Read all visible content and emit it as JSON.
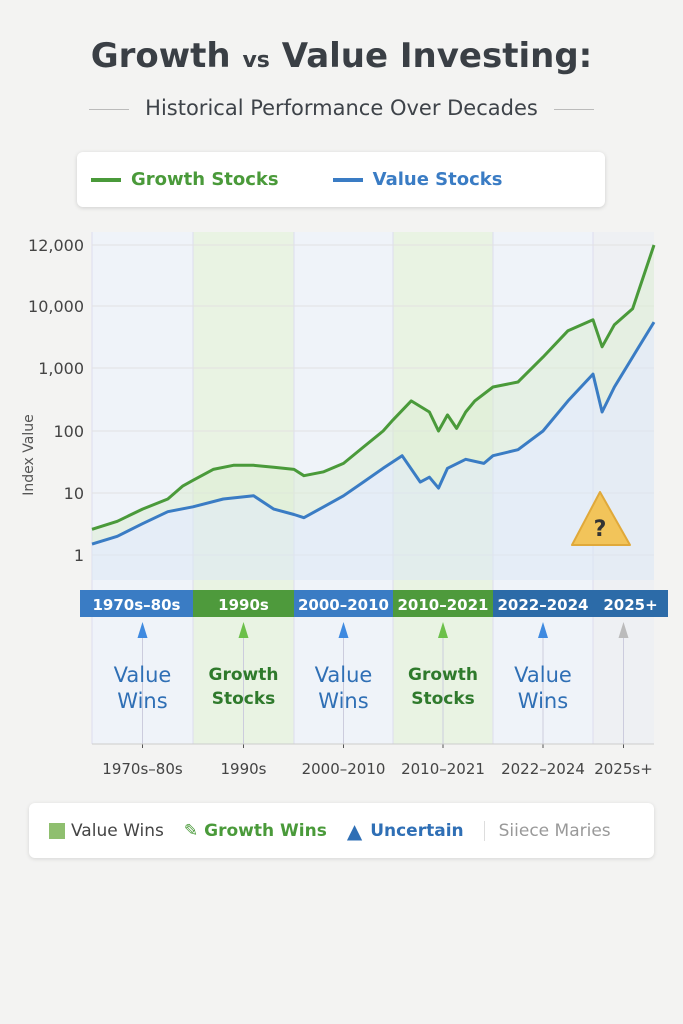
{
  "title": {
    "part1": "Growth",
    "vs": "vs",
    "part2": "Value Investing:"
  },
  "subtitle": "Historical Performance Over Decades",
  "colors": {
    "growth": "#4a9a3a",
    "value": "#3a7cc4",
    "uncertain": "#f2c45a"
  },
  "chart_data": {
    "type": "line",
    "ylabel": "Index Value",
    "yscale": "log",
    "yticks": [
      "1",
      "10",
      "100",
      "1,000",
      "10,000",
      "12,000"
    ],
    "ytick_values": [
      1,
      10,
      100,
      1000,
      10000,
      12000
    ],
    "grid": true,
    "legend_position": "top",
    "series": [
      {
        "name": "Growth Stocks",
        "x": [
          1970,
          1975,
          1980,
          1985,
          1988,
          1990,
          1992,
          1994,
          1996,
          1998,
          2000,
          2001,
          2003,
          2005,
          2007,
          2009,
          2010,
          2012,
          2014,
          2015,
          2016,
          2017,
          2018,
          2019,
          2021,
          2022,
          2023,
          2024,
          2025,
          2025.3,
          2025.7,
          2026.3,
          2027
        ],
        "values": [
          2.6,
          3.5,
          5.5,
          8,
          13,
          16,
          24,
          28,
          28,
          26,
          24,
          19,
          22,
          30,
          55,
          100,
          150,
          300,
          200,
          100,
          180,
          110,
          200,
          300,
          500,
          600,
          1500,
          4000,
          6000,
          2200,
          5000,
          9000,
          12000
        ]
      },
      {
        "name": "Value Stocks",
        "x": [
          1970,
          1975,
          1980,
          1985,
          1990,
          1993,
          1996,
          1998,
          2000,
          2001,
          2003,
          2005,
          2007,
          2009,
          2011,
          2013,
          2014,
          2015,
          2016,
          2018,
          2020,
          2021,
          2022,
          2023,
          2024,
          2025,
          2025.3,
          2025.7,
          2026.3,
          2027
        ],
        "values": [
          1.5,
          2,
          3.2,
          5,
          6,
          8,
          9,
          5.5,
          4.5,
          4,
          6,
          9,
          15,
          25,
          40,
          15,
          18,
          12,
          25,
          35,
          30,
          40,
          50,
          100,
          300,
          800,
          200,
          500,
          1500,
          5500
        ]
      }
    ],
    "eras": [
      {
        "label": "1970s–80s",
        "axis_label": "1970s–80s",
        "winner": "Value Wins",
        "type": "value"
      },
      {
        "label": "1990s",
        "axis_label": "1990s",
        "winner": "Growth Stocks",
        "type": "growth"
      },
      {
        "label": "2000–2010",
        "axis_label": "2000–2010",
        "winner": "Value Wins",
        "type": "value"
      },
      {
        "label": "2010–2021",
        "axis_label": "2010–2021",
        "winner": "Growth Stocks",
        "type": "growth"
      },
      {
        "label": "2022–2024",
        "axis_label": "2022–2024",
        "winner": "Value Wins",
        "type": "value"
      },
      {
        "label": "2025+",
        "axis_label": "2025s+",
        "winner": "",
        "type": "uncertain"
      }
    ],
    "annotation": "?"
  },
  "bottom_legend": {
    "value": "Value Wins",
    "growth": "Growth Wins",
    "uncertain": "Uncertain",
    "source": "Siiece Maries"
  }
}
